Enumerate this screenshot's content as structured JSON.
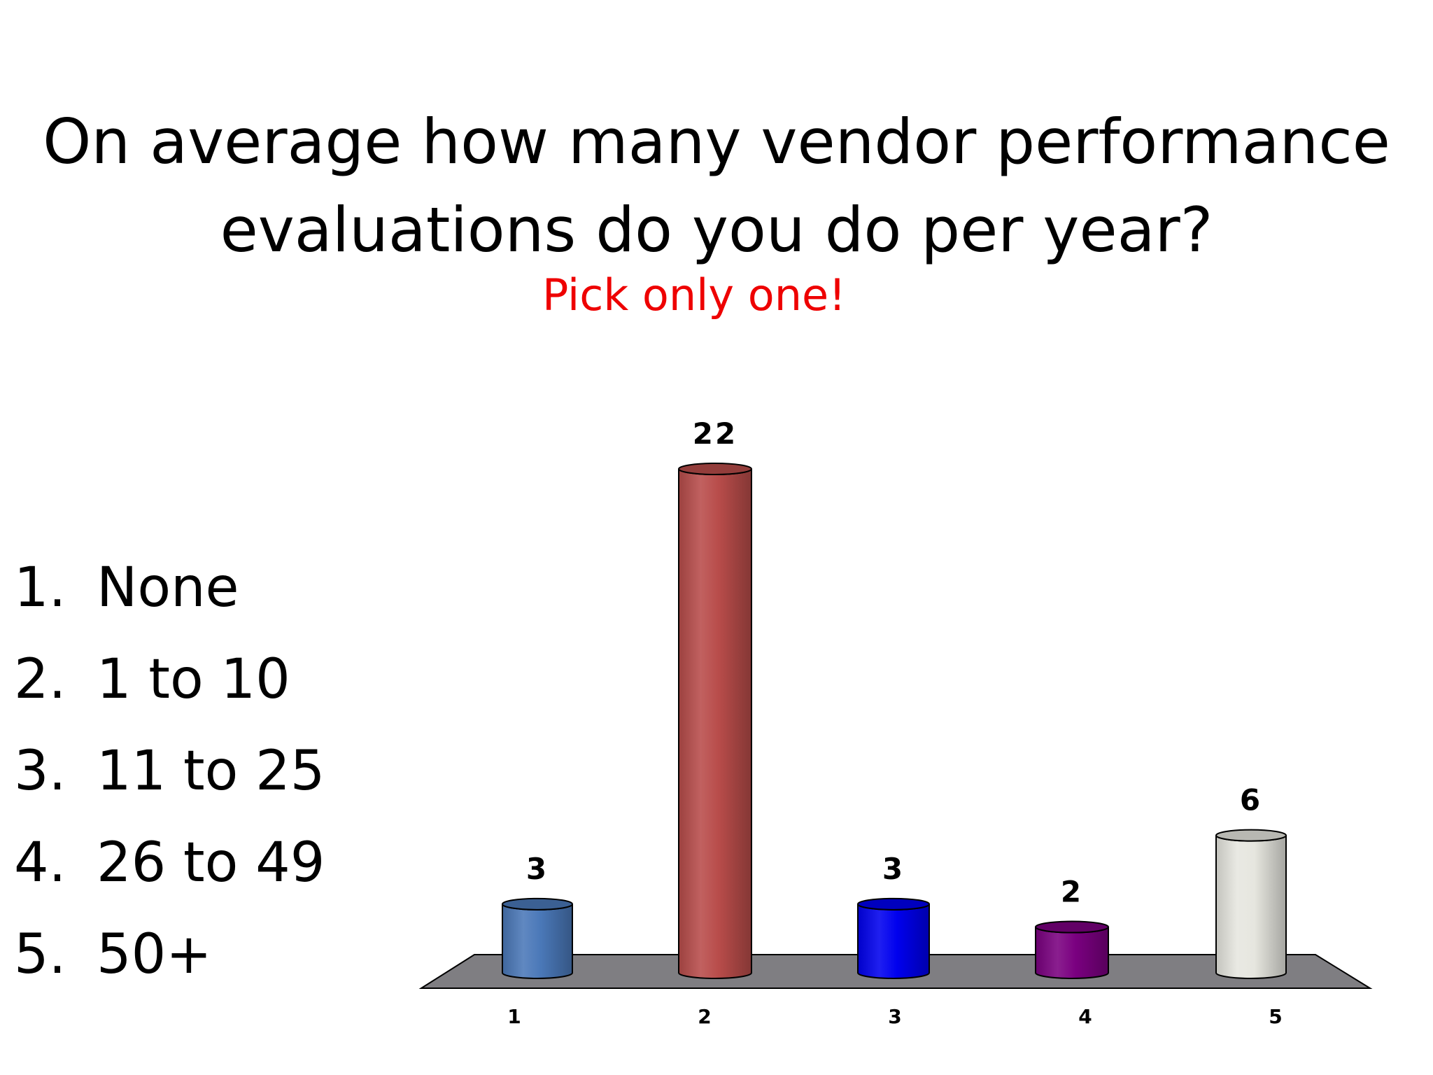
{
  "title_lines": [
    "On average how many vendor performance",
    "evaluations do you do per year?"
  ],
  "subtitle": "Pick only one!",
  "options": [
    {
      "num": "1.",
      "label": "None"
    },
    {
      "num": "2.",
      "label": "1 to 10"
    },
    {
      "num": "3.",
      "label": "11 to 25"
    },
    {
      "num": "4.",
      "label": "26 to 49"
    },
    {
      "num": "5.",
      "label": "50+"
    }
  ],
  "colors": {
    "subtitle": "#ee0000",
    "floor": "#7f7e82"
  },
  "chart_data": {
    "type": "bar",
    "style": "3d-cylinder",
    "categories": [
      "1",
      "2",
      "3",
      "4",
      "5"
    ],
    "values": [
      3,
      22,
      3,
      2,
      6
    ],
    "data_labels": [
      "3",
      "22",
      "3",
      "2",
      "6"
    ],
    "colors": [
      "#4a78b8",
      "#b84c4a",
      "#0000ee",
      "#7a0080",
      "#e6e6df"
    ],
    "ylim": [
      0,
      22
    ],
    "grid": false,
    "legend": false
  }
}
